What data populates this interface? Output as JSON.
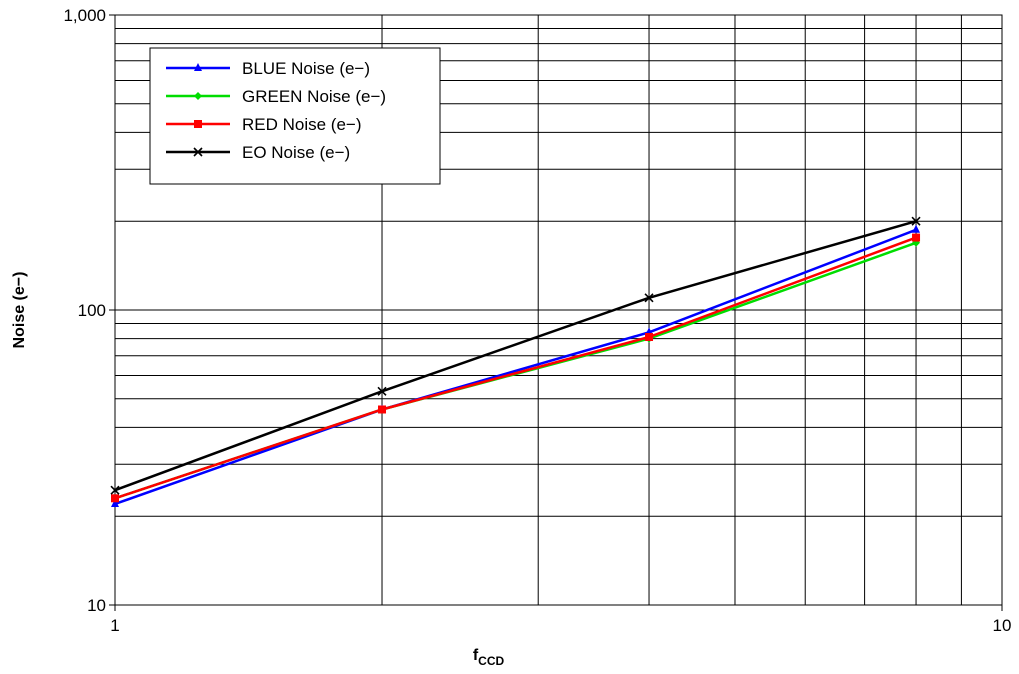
{
  "chart_data": {
    "type": "line",
    "x_scale": "log",
    "y_scale": "log",
    "xlim": [
      1,
      10
    ],
    "ylim": [
      10,
      1000
    ],
    "grid": true,
    "legend_position": "top-left",
    "xlabel": {
      "main": "f",
      "sub": "CCD"
    },
    "ylabel": "Noise (e−)",
    "x_tick_labels": [
      {
        "value": 1,
        "label": "1"
      },
      {
        "value": 10,
        "label": "10"
      }
    ],
    "y_tick_labels": [
      {
        "value": 10,
        "label": "10"
      },
      {
        "value": 100,
        "label": "100"
      },
      {
        "value": 1000,
        "label": "1,000"
      }
    ],
    "x": [
      1,
      2,
      4,
      8
    ],
    "series": [
      {
        "name": "BLUE Noise (e−)",
        "color": "#0000ff",
        "marker": "triangle",
        "values": [
          22,
          46,
          84,
          187
        ]
      },
      {
        "name": "GREEN Noise (e−)",
        "color": "#00dd00",
        "marker": "diamond",
        "values": [
          23,
          46,
          80,
          169
        ]
      },
      {
        "name": "RED Noise (e−)",
        "color": "#ff0000",
        "marker": "square",
        "values": [
          23,
          46,
          81,
          176
        ]
      },
      {
        "name": "EO Noise (e−)",
        "color": "#000000",
        "marker": "x",
        "values": [
          24.5,
          53,
          110,
          200
        ]
      }
    ]
  }
}
